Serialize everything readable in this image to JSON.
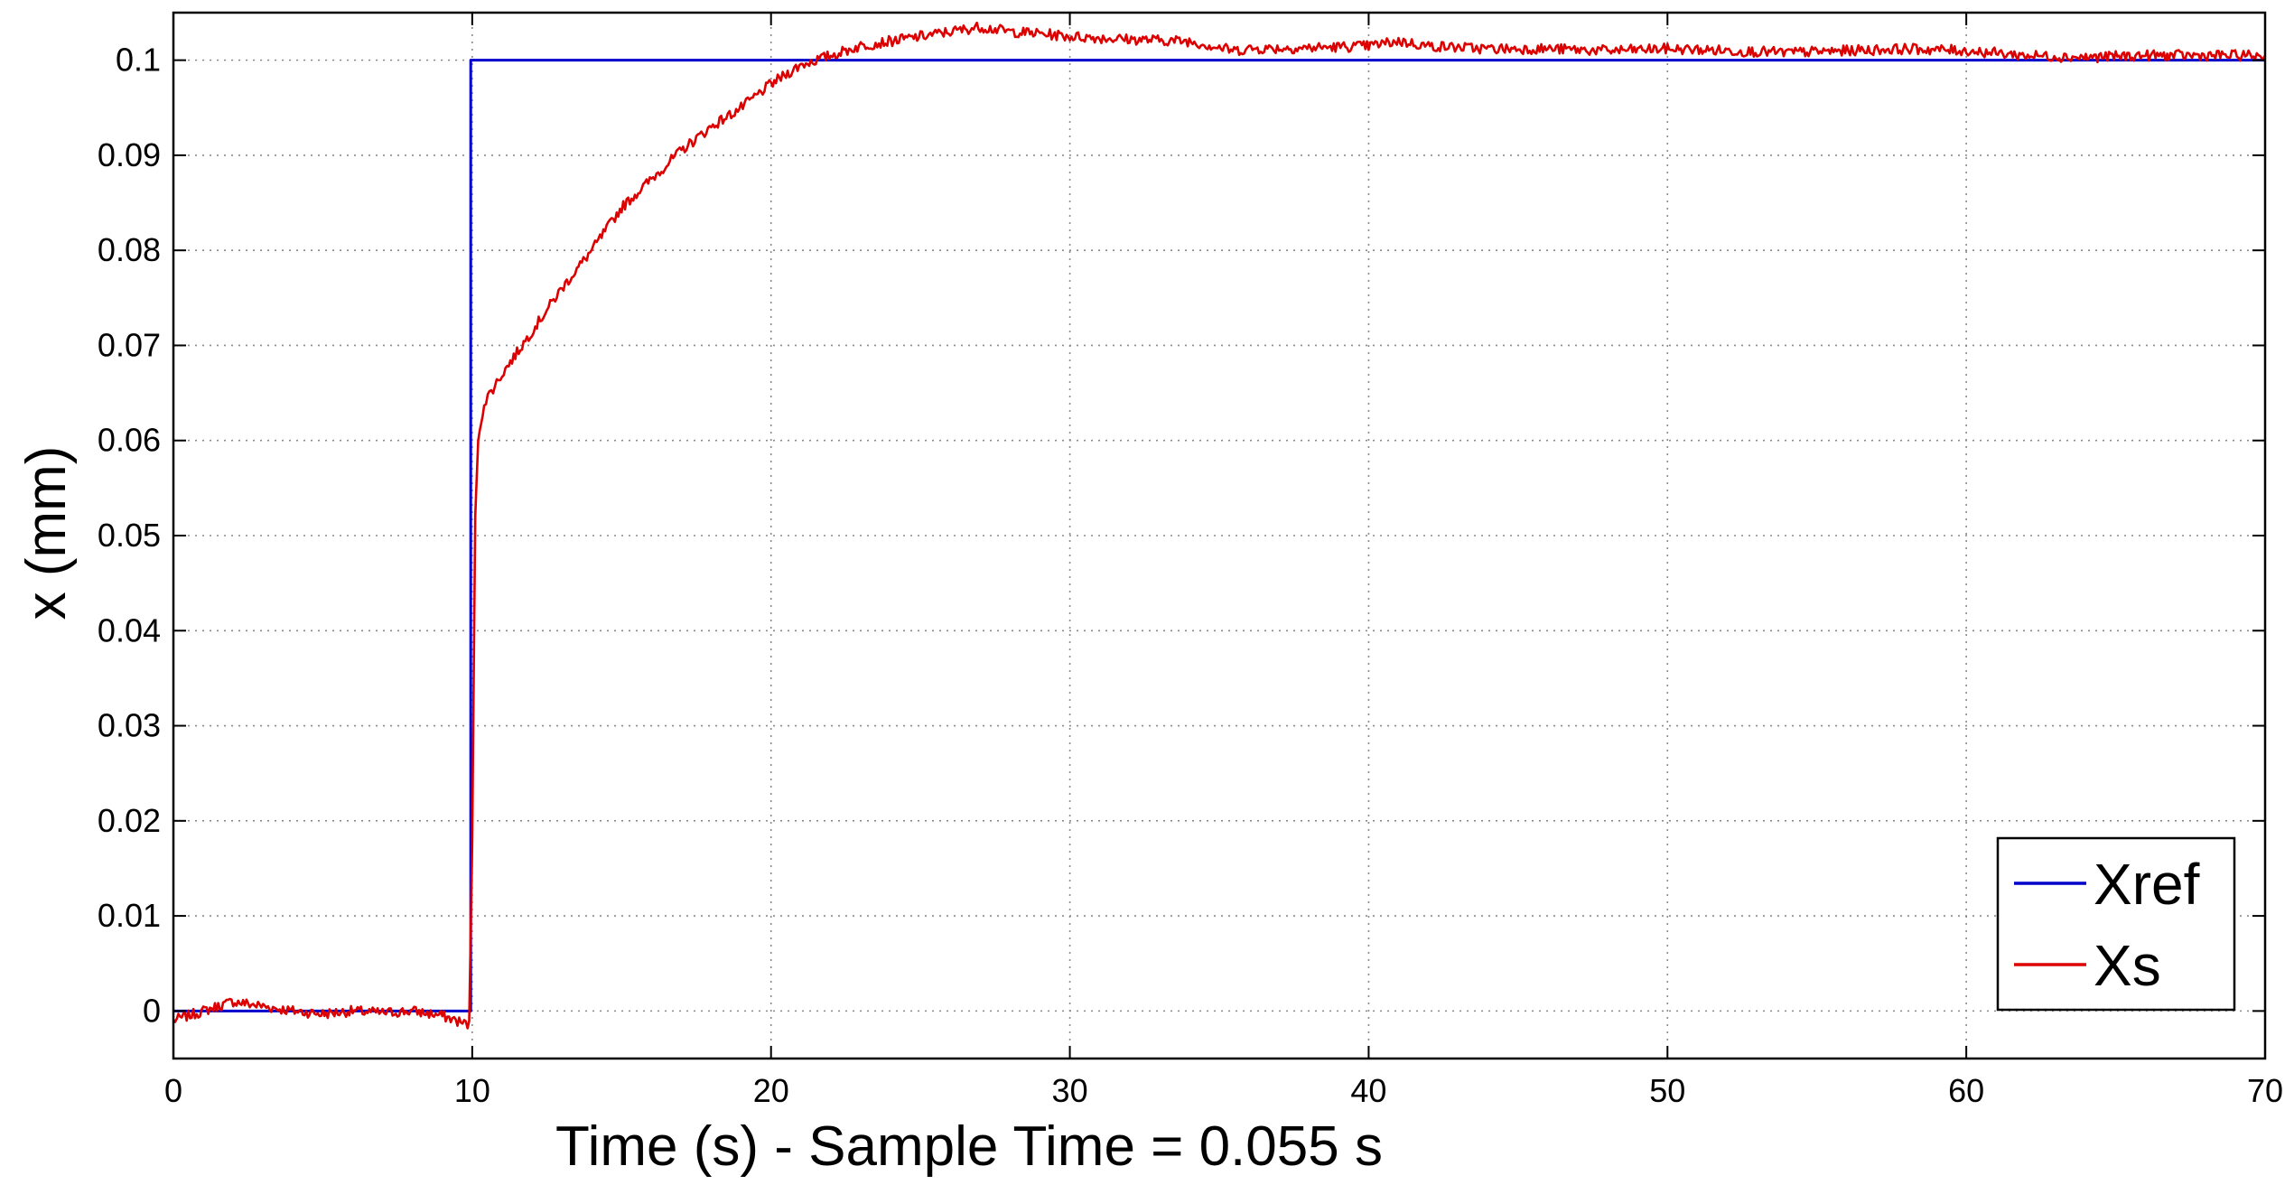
{
  "chart_data": {
    "type": "line",
    "title": "",
    "xlabel": "Time (s) - Sample Time = 0.055 s",
    "ylabel": "x (mm)",
    "xlim": [
      0,
      70
    ],
    "ylim": [
      -0.005,
      0.105
    ],
    "xticks": [
      0,
      10,
      20,
      30,
      40,
      50,
      60,
      70
    ],
    "yticks": [
      0,
      0.01,
      0.02,
      0.03,
      0.04,
      0.05,
      0.06,
      0.07,
      0.08,
      0.09,
      0.1
    ],
    "xtick_labels": [
      "0",
      "10",
      "20",
      "30",
      "40",
      "50",
      "60",
      "70"
    ],
    "ytick_labels": [
      "0",
      "0.01",
      "0.02",
      "0.03",
      "0.04",
      "0.05",
      "0.06",
      "0.07",
      "0.08",
      "0.09",
      "0.1"
    ],
    "grid": true,
    "legend_position": "bottom-right",
    "series": [
      {
        "name": "Xref",
        "color": "#0000cc",
        "x": [
          0,
          9.95,
          9.95,
          70
        ],
        "y": [
          0,
          0,
          0.1,
          0.1
        ]
      },
      {
        "name": "Xs",
        "color": "#dd0000",
        "x": [
          0,
          1,
          2,
          3,
          4,
          5,
          6,
          7,
          8,
          9,
          9.9,
          10.0,
          10.1,
          10.2,
          10.4,
          10.7,
          11,
          12,
          13,
          14,
          15,
          16,
          17,
          18,
          19,
          20,
          21,
          22,
          23,
          24,
          25,
          26,
          27,
          28,
          29,
          30,
          32,
          34,
          35.5,
          36,
          38,
          40,
          41,
          42,
          44,
          46,
          48,
          50,
          52,
          54,
          56,
          58,
          60,
          62,
          64,
          66,
          68,
          70
        ],
        "y": [
          -0.001,
          0.0,
          0.001,
          0.0005,
          0.0,
          -0.0003,
          0.0,
          -0.0002,
          0.0,
          -0.0005,
          -0.0015,
          0.018,
          0.052,
          0.06,
          0.064,
          0.0655,
          0.067,
          0.0715,
          0.076,
          0.08,
          0.0845,
          0.0875,
          0.0905,
          0.093,
          0.095,
          0.0975,
          0.0995,
          0.1005,
          0.1015,
          0.102,
          0.1025,
          0.103,
          0.1035,
          0.103,
          0.1028,
          0.1025,
          0.1022,
          0.102,
          0.101,
          0.1012,
          0.1013,
          0.1015,
          0.102,
          0.1015,
          0.1012,
          0.1012,
          0.101,
          0.1012,
          0.101,
          0.1008,
          0.101,
          0.1012,
          0.101,
          0.1005,
          0.1003,
          0.1005,
          0.1005,
          0.1005
        ]
      }
    ]
  }
}
